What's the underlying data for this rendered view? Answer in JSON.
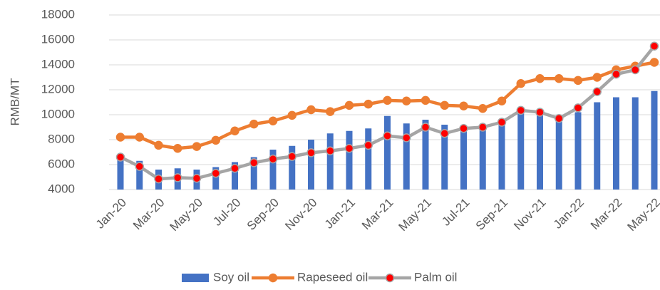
{
  "chart_data": {
    "type": "bar-line",
    "y_label": "RMB/MT",
    "categories": [
      "Jan-20",
      null,
      "Mar-20",
      null,
      "May-20",
      null,
      "Jul-20",
      null,
      "Sep-20",
      null,
      "Nov-20",
      null,
      "Jan-21",
      null,
      "Mar-21",
      null,
      "May-21",
      null,
      "Jul-21",
      null,
      "Sep-21",
      null,
      "Nov-21",
      null,
      "Jan-22",
      null,
      "Mar-22",
      null,
      "May-22"
    ],
    "series": [
      {
        "name": "Soy oil",
        "type": "bar",
        "color": "#4472c4",
        "values": [
          6700,
          6300,
          5600,
          5700,
          5600,
          5800,
          6200,
          6600,
          7200,
          7500,
          8000,
          8500,
          8700,
          8900,
          9900,
          9300,
          9600,
          9200,
          9000,
          9200,
          9500,
          10500,
          10200,
          9700,
          10200,
          11000,
          11400,
          11400,
          11900
        ]
      },
      {
        "name": "Rapeseed oil",
        "type": "line",
        "color": "#ed7d31",
        "marker_color": "#ed7d31",
        "values": [
          8200,
          8200,
          7550,
          7300,
          7450,
          7950,
          8700,
          9250,
          9500,
          9950,
          10400,
          10250,
          10750,
          10850,
          11150,
          11100,
          11150,
          10750,
          10700,
          10500,
          11100,
          12500,
          12900,
          12900,
          12750,
          13000,
          13600,
          13900,
          14200
        ]
      },
      {
        "name": "Palm oil",
        "type": "line",
        "color": "#a5a5a5",
        "marker_color": "#ff0000",
        "values": [
          6600,
          5850,
          4850,
          4950,
          4900,
          5300,
          5700,
          6150,
          6450,
          6650,
          6950,
          7100,
          7300,
          7550,
          8300,
          8150,
          9000,
          8500,
          8900,
          9000,
          9400,
          10350,
          10200,
          9700,
          10550,
          11850,
          13250,
          13600,
          15500
        ]
      }
    ],
    "ylim": [
      4000,
      18000
    ],
    "yticks": [
      4000,
      6000,
      8000,
      10000,
      12000,
      14000,
      16000,
      18000
    ],
    "grid": true
  }
}
